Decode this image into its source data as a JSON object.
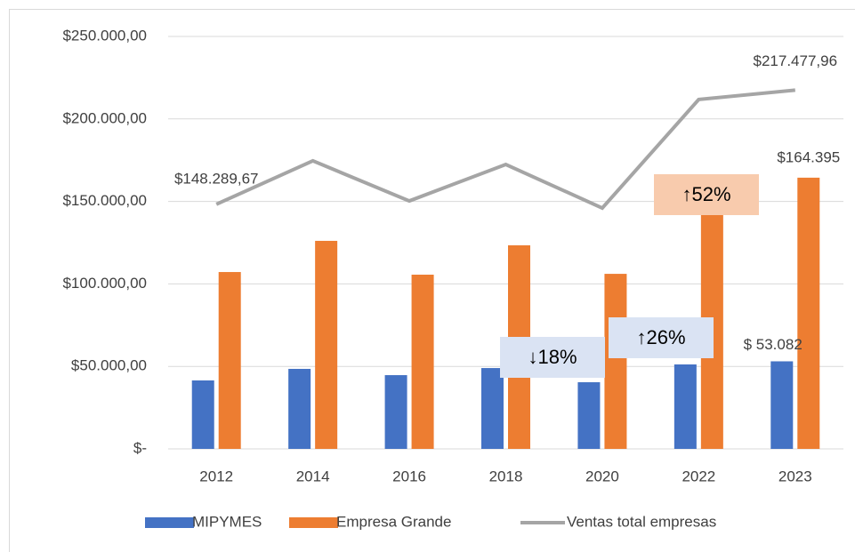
{
  "chart_data": {
    "type": "bar_line",
    "categories": [
      "2012",
      "2014",
      "2016",
      "2018",
      "2020",
      "2022",
      "2023"
    ],
    "series": [
      {
        "name": "MIPYMES",
        "type": "bar",
        "color": "#4472c4",
        "values": [
          41500,
          48500,
          44700,
          49000,
          40400,
          51200,
          53082
        ],
        "value_labels": [
          null,
          null,
          null,
          null,
          null,
          null,
          "$ 53.082"
        ]
      },
      {
        "name": "Empresa Grande",
        "type": "bar",
        "color": "#ed7d31",
        "values": [
          107200,
          126100,
          105600,
          123400,
          106100,
          160000,
          164395
        ],
        "value_labels": [
          null,
          null,
          null,
          null,
          null,
          null,
          "$164.395"
        ]
      },
      {
        "name": "Ventas total empresas",
        "type": "line",
        "color": "#a5a5a5",
        "values": [
          148289.67,
          174600,
          150300,
          172400,
          146000,
          211800,
          217477.96
        ],
        "value_labels": [
          "$148.289,67",
          null,
          null,
          null,
          null,
          null,
          "$217.477,96"
        ]
      }
    ],
    "ylim": [
      0,
      250000
    ],
    "yticks": [
      {
        "value": 0,
        "label": "$-"
      },
      {
        "value": 50000,
        "label": "$50.000,00"
      },
      {
        "value": 100000,
        "label": "$100.000,00"
      },
      {
        "value": 150000,
        "label": "$150.000,00"
      },
      {
        "value": 200000,
        "label": "$200.000,00"
      },
      {
        "value": 250000,
        "label": "$250.000,00"
      }
    ],
    "grid": true,
    "legend": "bottom",
    "annotations": [
      {
        "text": "↓18%",
        "color": "#dae3f3"
      },
      {
        "text": "↑26%",
        "color": "#dae3f3"
      },
      {
        "text": "↑52%",
        "color": "#f8cbad"
      }
    ]
  }
}
